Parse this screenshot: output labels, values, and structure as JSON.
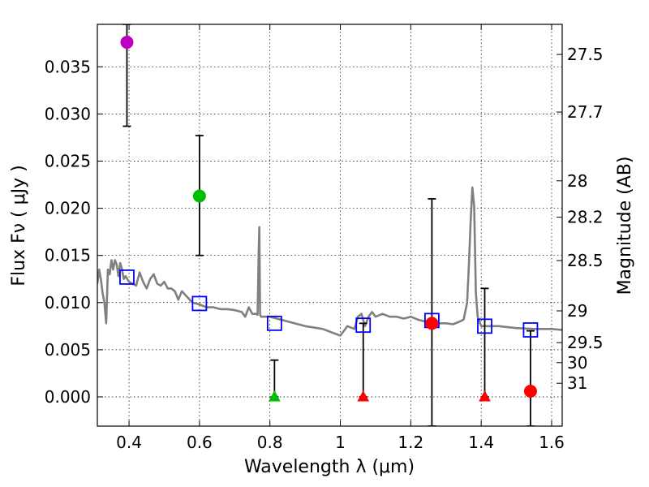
{
  "chart_data": {
    "type": "scatter",
    "x_axis": {
      "label": "Wavelength  λ (μm)",
      "range": [
        0.31,
        1.63
      ],
      "ticks": [
        0.4,
        0.6,
        0.8,
        1.0,
        1.2,
        1.4,
        1.6
      ],
      "tick_labels": [
        "0.4",
        "0.6",
        "0.8",
        "1",
        "1.2",
        "1.4",
        "1.6"
      ]
    },
    "y_axis": {
      "label": "Flux  Fν  ( μJy )",
      "range": [
        -0.0031,
        0.0395
      ],
      "ticks": [
        0.0,
        0.005,
        0.01,
        0.015,
        0.02,
        0.025,
        0.03,
        0.035
      ],
      "tick_labels": [
        "0.000",
        "0.005",
        "0.010",
        "0.015",
        "0.020",
        "0.025",
        "0.030",
        "0.035"
      ]
    },
    "y2_axis": {
      "label": "Magnitude (AB)",
      "ticks": [
        27.5,
        27.7,
        28,
        28.2,
        28.5,
        29,
        29.5,
        30,
        31
      ],
      "tick_labels": [
        "27.5",
        "27.7",
        "28",
        "28.2",
        "28.5",
        "29",
        "29.5",
        "30",
        "31"
      ]
    },
    "grid": true,
    "series": [
      {
        "name": "model_spectrum",
        "kind": "line",
        "color": "#808080",
        "x": [
          0.31,
          0.315,
          0.32,
          0.325,
          0.33,
          0.335,
          0.34,
          0.345,
          0.35,
          0.355,
          0.36,
          0.365,
          0.37,
          0.375,
          0.38,
          0.385,
          0.39,
          0.4,
          0.41,
          0.42,
          0.43,
          0.44,
          0.45,
          0.46,
          0.47,
          0.48,
          0.49,
          0.5,
          0.51,
          0.52,
          0.53,
          0.54,
          0.55,
          0.56,
          0.58,
          0.6,
          0.62,
          0.64,
          0.66,
          0.68,
          0.7,
          0.72,
          0.73,
          0.74,
          0.75,
          0.76,
          0.765,
          0.768,
          0.77,
          0.772,
          0.775,
          0.8,
          0.85,
          0.9,
          0.95,
          1.0,
          1.01,
          1.02,
          1.04,
          1.05,
          1.06,
          1.07,
          1.08,
          1.09,
          1.1,
          1.12,
          1.14,
          1.16,
          1.18,
          1.2,
          1.22,
          1.24,
          1.26,
          1.28,
          1.3,
          1.32,
          1.34,
          1.35,
          1.36,
          1.365,
          1.37,
          1.375,
          1.38,
          1.385,
          1.39,
          1.4,
          1.45,
          1.5,
          1.55,
          1.6,
          1.63
        ],
        "y": [
          0.012,
          0.0135,
          0.0125,
          0.011,
          0.01,
          0.0078,
          0.0135,
          0.013,
          0.0145,
          0.0135,
          0.0145,
          0.014,
          0.0128,
          0.0142,
          0.0135,
          0.0125,
          0.0128,
          0.0122,
          0.012,
          0.0118,
          0.0132,
          0.0122,
          0.0115,
          0.0125,
          0.013,
          0.012,
          0.0118,
          0.0122,
          0.0115,
          0.0115,
          0.0112,
          0.0103,
          0.0112,
          0.0108,
          0.01,
          0.0098,
          0.0095,
          0.0095,
          0.0093,
          0.0093,
          0.0092,
          0.009,
          0.0085,
          0.0095,
          0.0088,
          0.0088,
          0.0087,
          0.015,
          0.018,
          0.0087,
          0.0085,
          0.0085,
          0.008,
          0.0075,
          0.0072,
          0.0065,
          0.007,
          0.0075,
          0.0072,
          0.0085,
          0.0088,
          0.0075,
          0.0085,
          0.009,
          0.0085,
          0.0088,
          0.0085,
          0.0085,
          0.0083,
          0.0085,
          0.0082,
          0.008,
          0.008,
          0.0078,
          0.0078,
          0.0077,
          0.008,
          0.0082,
          0.01,
          0.014,
          0.0185,
          0.0222,
          0.0202,
          0.011,
          0.0085,
          0.0075,
          0.0075,
          0.0073,
          0.0072,
          0.0072,
          0.0071
        ]
      },
      {
        "name": "model_band_fluxes",
        "kind": "open-square",
        "color": "#0000ff",
        "x": [
          0.394,
          0.6,
          0.813,
          1.065,
          1.26,
          1.41,
          1.54
        ],
        "y": [
          0.0127,
          0.0099,
          0.0078,
          0.0076,
          0.0081,
          0.0075,
          0.0071
        ]
      },
      {
        "name": "detections",
        "kind": "circle",
        "points": [
          {
            "x": 0.394,
            "y": 0.0376,
            "err_low": 0.0287,
            "err_high": 0.0395,
            "color": "#bf00bf"
          },
          {
            "x": 0.6,
            "y": 0.0213,
            "err_low": 0.015,
            "err_high": 0.0277,
            "color": "#00bf00"
          },
          {
            "x": 1.26,
            "y": 0.0078,
            "err_low": -0.0031,
            "err_high": 0.021,
            "color": "#ff0000"
          },
          {
            "x": 1.54,
            "y": 0.0006,
            "err_low": -0.0031,
            "err_high": 0.007,
            "color": "#ff0000"
          }
        ]
      },
      {
        "name": "upper_limits",
        "kind": "triangle",
        "points": [
          {
            "x": 0.813,
            "y": 0.0,
            "err_high": 0.0039,
            "color": "#00bf00"
          },
          {
            "x": 1.065,
            "y": 0.0,
            "err_high": 0.0078,
            "color": "#ff0000"
          },
          {
            "x": 1.41,
            "y": 0.0,
            "err_high": 0.0115,
            "color": "#ff0000"
          }
        ]
      }
    ]
  }
}
